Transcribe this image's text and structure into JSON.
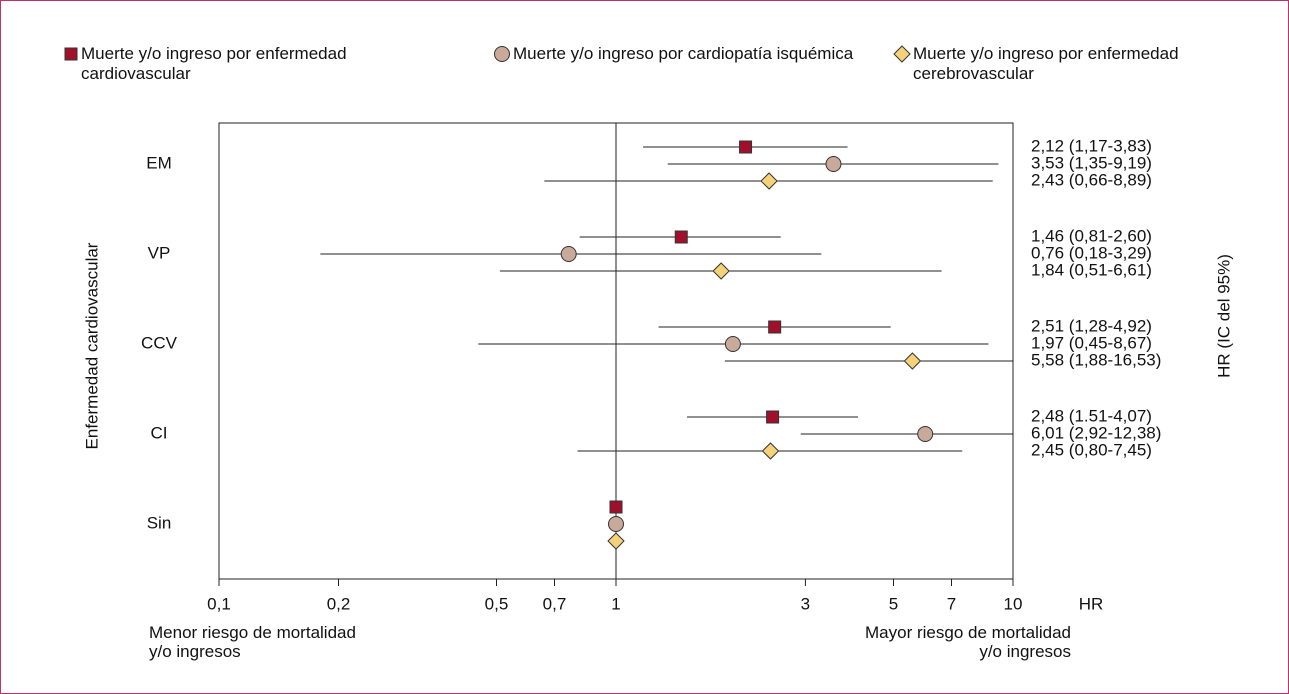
{
  "chart_data": {
    "type": "forest",
    "x_label": "HR",
    "y_label": "Enfermedad cardiovascular",
    "right_label": "HR (IC del 95%)",
    "note_left": "Menor riesgo de mortalidad y/o ingresos",
    "note_right": "Mayor riesgo de mortalidad y/o ingresos",
    "log_x": true,
    "xlim": [
      0.1,
      10
    ],
    "xticks": [
      {
        "value": 0.1,
        "label": "0,1"
      },
      {
        "value": 0.2,
        "label": "0,2"
      },
      {
        "value": 0.5,
        "label": "0,5"
      },
      {
        "value": 0.7,
        "label": "0,7"
      },
      1,
      3,
      5,
      7,
      10
    ],
    "reference_line": 1,
    "categories": [
      "EM",
      "VP",
      "CCV",
      "CI",
      "Sin"
    ],
    "series": [
      {
        "name": "Muerte y/o ingreso por enfermedad cardiovascular",
        "marker": "square",
        "color": "#a0102a",
        "values": [
          2.12,
          1.46,
          2.51,
          2.48,
          1
        ],
        "lower": [
          1.17,
          0.81,
          1.28,
          1.51,
          null
        ],
        "upper": [
          3.83,
          2.6,
          4.92,
          4.07,
          null
        ],
        "value_labels": [
          "2,12 (1,17-3,83)",
          "1,46 (0,81-2,60)",
          "2,51 (1,28-4,92)",
          "2,48 (1.51-4,07)",
          null
        ]
      },
      {
        "name": "Muerte y/o ingreso por cardiopatía isquémica",
        "marker": "circle",
        "color": "#c9a99a",
        "values": [
          3.53,
          0.76,
          1.97,
          6.01,
          1
        ],
        "lower": [
          1.35,
          0.18,
          0.45,
          2.92,
          null
        ],
        "upper": [
          9.19,
          3.29,
          8.67,
          12.38,
          null
        ],
        "value_labels": [
          "3,53 (1,35-9,19)",
          "0,76 (0,18-3,29)",
          "1,97 (0,45-8,67)",
          "6,01 (2,92-12,38)",
          null
        ]
      },
      {
        "name": "Muerte y/o ingreso por enfermedad cerebrovascular",
        "marker": "diamond",
        "color": "#f5d27a",
        "values": [
          2.43,
          1.84,
          5.58,
          2.45,
          1
        ],
        "lower": [
          0.66,
          0.51,
          1.88,
          0.8,
          null
        ],
        "upper": [
          8.89,
          6.61,
          16.53,
          7.45,
          null
        ],
        "value_labels": [
          "2,43 (0,66-8,89)",
          "1,84 (0,51-6,61)",
          "5,58 (1,88-16,53)",
          "2,45 (0,80-7,45)",
          null
        ]
      }
    ]
  }
}
